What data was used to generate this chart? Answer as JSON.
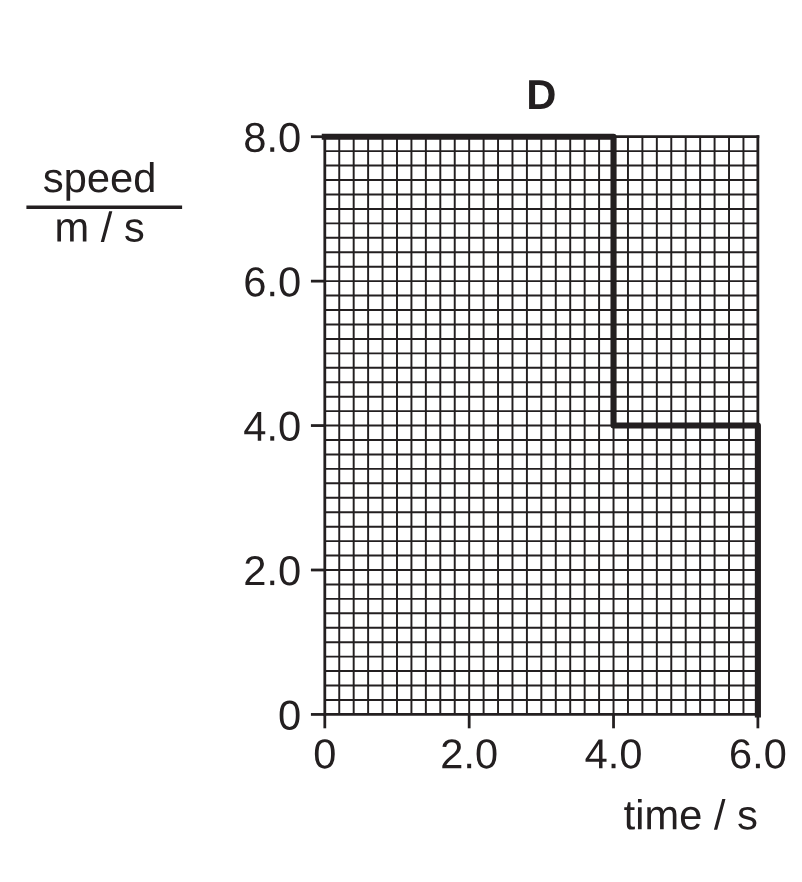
{
  "chart_data": {
    "type": "line",
    "title": "D",
    "xlabel": "time / s",
    "ylabel": "speed\nm / s",
    "x": [
      0,
      4,
      4,
      6,
      6
    ],
    "series": [
      {
        "color": "#231f20",
        "values": [
          8,
          8,
          4,
          4,
          0
        ]
      }
    ],
    "xlim": [
      0,
      6
    ],
    "ylim": [
      0,
      8
    ],
    "xticks": [
      0,
      {
        "value": 0.2,
        "label": null
      },
      {
        "value": 0.4,
        "label": null
      },
      {
        "value": 0.6,
        "label": null
      },
      {
        "value": 0.8,
        "label": null
      },
      {
        "value": 1,
        "label": null
      },
      {
        "value": 1.2,
        "label": null
      },
      {
        "value": 1.4,
        "label": null
      },
      {
        "value": 1.6,
        "label": null
      },
      {
        "value": 1.8,
        "label": null
      },
      {
        "value": 2,
        "label": "2.0"
      },
      {
        "value": 2.2,
        "label": null
      },
      {
        "value": 2.4,
        "label": null
      },
      {
        "value": 2.6,
        "label": null
      },
      {
        "value": 2.8,
        "label": null
      },
      {
        "value": 3,
        "label": null
      },
      {
        "value": 3.2,
        "label": null
      },
      {
        "value": 3.4,
        "label": null
      },
      {
        "value": 3.6,
        "label": null
      },
      {
        "value": 3.8,
        "label": null
      },
      {
        "value": 4,
        "label": "4.0"
      },
      {
        "value": 4.2,
        "label": null
      },
      {
        "value": 4.4,
        "label": null
      },
      {
        "value": 4.6,
        "label": null
      },
      {
        "value": 4.8,
        "label": null
      },
      {
        "value": 5,
        "label": null
      },
      {
        "value": 5.2,
        "label": null
      },
      {
        "value": 5.4,
        "label": null
      },
      {
        "value": 5.6,
        "label": null
      },
      {
        "value": 5.8,
        "label": null
      },
      {
        "value": 6,
        "label": "6.0"
      }
    ],
    "yticks": [
      0,
      {
        "value": 0.2,
        "label": null
      },
      {
        "value": 0.4,
        "label": null
      },
      {
        "value": 0.6,
        "label": null
      },
      {
        "value": 0.8,
        "label": null
      },
      {
        "value": 1,
        "label": null
      },
      {
        "value": 1.2,
        "label": null
      },
      {
        "value": 1.4,
        "label": null
      },
      {
        "value": 1.6,
        "label": null
      },
      {
        "value": 1.8,
        "label": null
      },
      {
        "value": 2,
        "label": "2.0"
      },
      {
        "value": 2.2,
        "label": null
      },
      {
        "value": 2.4,
        "label": null
      },
      {
        "value": 2.6,
        "label": null
      },
      {
        "value": 2.8,
        "label": null
      },
      {
        "value": 3,
        "label": null
      },
      {
        "value": 3.2,
        "label": null
      },
      {
        "value": 3.4,
        "label": null
      },
      {
        "value": 3.6,
        "label": null
      },
      {
        "value": 3.8,
        "label": null
      },
      {
        "value": 4,
        "label": "4.0"
      },
      {
        "value": 4.2,
        "label": null
      },
      {
        "value": 4.4,
        "label": null
      },
      {
        "value": 4.6,
        "label": null
      },
      {
        "value": 4.8,
        "label": null
      },
      {
        "value": 5,
        "label": null
      },
      {
        "value": 5.2,
        "label": null
      },
      {
        "value": 5.4,
        "label": null
      },
      {
        "value": 5.6,
        "label": null
      },
      {
        "value": 5.8,
        "label": null
      },
      {
        "value": 6,
        "label": "6.0"
      },
      {
        "value": 6.2,
        "label": null
      },
      {
        "value": 6.4,
        "label": null
      },
      {
        "value": 6.6,
        "label": null
      },
      {
        "value": 6.8,
        "label": null
      },
      {
        "value": 7,
        "label": null
      },
      {
        "value": 7.2,
        "label": null
      },
      {
        "value": 7.4,
        "label": null
      },
      {
        "value": 7.6,
        "label": null
      },
      {
        "value": 7.8,
        "label": null
      },
      {
        "value": 8,
        "label": "8.0"
      }
    ],
    "grid": true,
    "marker": "none",
    "line_style": "solid"
  }
}
